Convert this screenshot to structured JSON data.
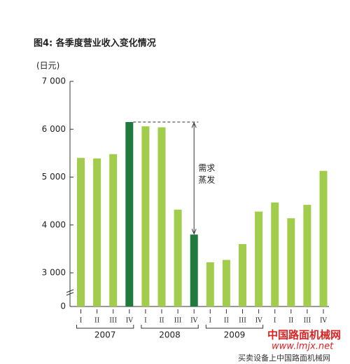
{
  "chart_data": {
    "type": "bar",
    "title": "图4: 各季度营业收入变化情况",
    "y_unit": "(日元)",
    "categories": [
      "I",
      "II",
      "III",
      "IV",
      "I",
      "II",
      "III",
      "IV",
      "I",
      "II",
      "III",
      "IV",
      "I",
      "II",
      "III",
      "IV"
    ],
    "values": [
      5400,
      5390,
      5480,
      6150,
      6060,
      6040,
      4320,
      3800,
      3220,
      3270,
      3600,
      4280,
      4470,
      4140,
      4420,
      5130
    ],
    "colors": [
      "#a2cd4c",
      "#a2cd4c",
      "#a2cd4c",
      "#1f7a3c",
      "#a2cd4c",
      "#a2cd4c",
      "#a2cd4c",
      "#1f7a3c",
      "#a2cd4c",
      "#a2cd4c",
      "#a2cd4c",
      "#a2cd4c",
      "#a2cd4c",
      "#a2cd4c",
      "#a2cd4c",
      "#a2cd4c"
    ],
    "years": [
      "2007",
      "2008",
      "2009"
    ],
    "ylim": [
      0,
      7000
    ],
    "yticks": [
      0,
      {
        "value": 3000,
        "label": "3 000"
      },
      {
        "value": 4000,
        "label": "4 000"
      },
      {
        "value": 5000,
        "label": "5 000"
      },
      {
        "value": 6000,
        "label": "6 000"
      },
      {
        "value": 7000,
        "label": "7 000"
      }
    ],
    "annotation": [
      "需求",
      "蒸发"
    ],
    "watermark": [
      "中国路面机械网",
      "www.lmjx.net",
      "买卖设备上中国路面机械网"
    ]
  }
}
